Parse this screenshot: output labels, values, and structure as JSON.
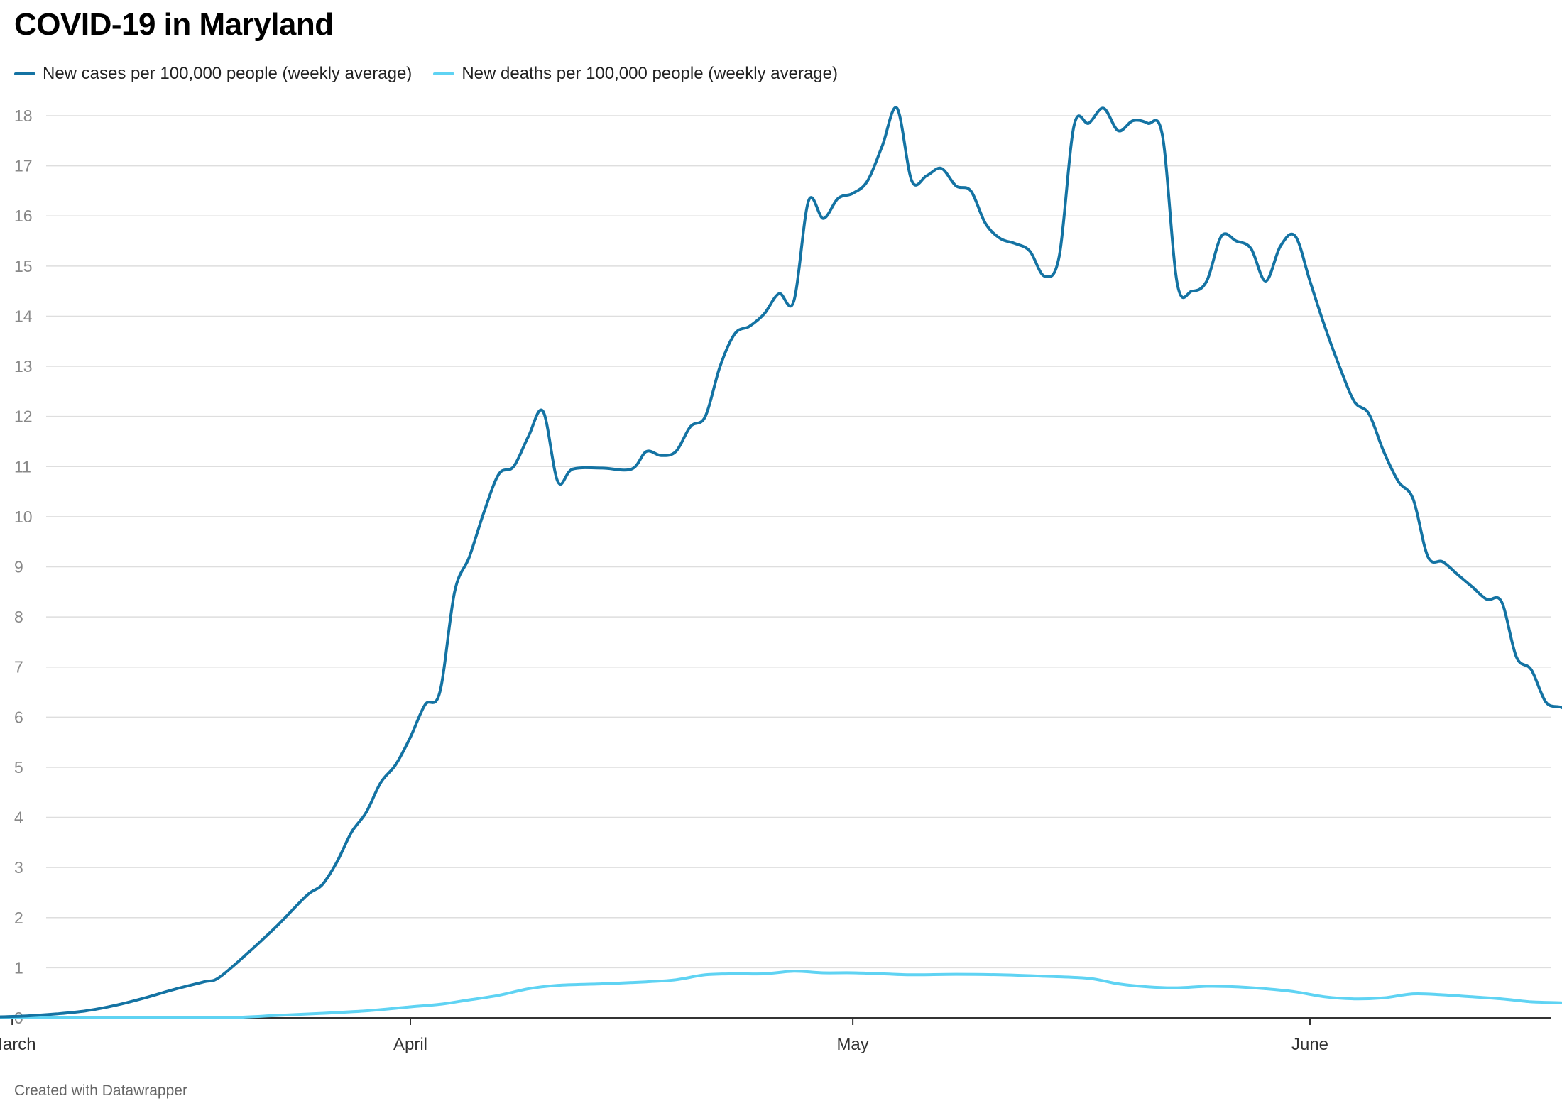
{
  "title": "COVID-19 in Maryland",
  "footer": "Created with Datawrapper",
  "legend": [
    {
      "label": "New cases per 100,000 people (weekly average)",
      "color": "#1473a3"
    },
    {
      "label": "New deaths per 100,000 people (weekly average)",
      "color": "#5fd3f3"
    }
  ],
  "chart_data": {
    "type": "line",
    "x_axis": {
      "type": "date",
      "range": [
        "2020-03-04",
        "2020-06-17"
      ],
      "ticks": [
        {
          "date": "2020-03-05",
          "label": "March"
        },
        {
          "date": "2020-04-01",
          "label": "April"
        },
        {
          "date": "2020-05-01",
          "label": "May"
        },
        {
          "date": "2020-06-01",
          "label": "June"
        }
      ]
    },
    "y_axis": {
      "range": [
        0,
        18
      ],
      "ticks": [
        0,
        1,
        2,
        3,
        4,
        5,
        6,
        7,
        8,
        9,
        10,
        11,
        12,
        13,
        14,
        15,
        16,
        17,
        18
      ]
    },
    "grid": true,
    "legend_position": "top-left",
    "series": [
      {
        "name": "New cases per 100,000 people (weekly average)",
        "color": "#1473a3",
        "points": [
          [
            "2020-03-04",
            0.02
          ],
          [
            "2020-03-06",
            0.04
          ],
          [
            "2020-03-08",
            0.08
          ],
          [
            "2020-03-10",
            0.14
          ],
          [
            "2020-03-12",
            0.25
          ],
          [
            "2020-03-14",
            0.4
          ],
          [
            "2020-03-16",
            0.57
          ],
          [
            "2020-03-18",
            0.72
          ],
          [
            "2020-03-19",
            0.8
          ],
          [
            "2020-03-21",
            1.3
          ],
          [
            "2020-03-23",
            1.85
          ],
          [
            "2020-03-25",
            2.45
          ],
          [
            "2020-03-26",
            2.65
          ],
          [
            "2020-03-27",
            3.1
          ],
          [
            "2020-03-28",
            3.7
          ],
          [
            "2020-03-29",
            4.1
          ],
          [
            "2020-03-30",
            4.7
          ],
          [
            "2020-03-31",
            5.05
          ],
          [
            "2020-04-01",
            5.6
          ],
          [
            "2020-04-02",
            6.25
          ],
          [
            "2020-04-03",
            6.5
          ],
          [
            "2020-04-04",
            8.5
          ],
          [
            "2020-04-05",
            9.2
          ],
          [
            "2020-04-06",
            10.1
          ],
          [
            "2020-04-07",
            10.85
          ],
          [
            "2020-04-08",
            11.0
          ],
          [
            "2020-04-09",
            11.6
          ],
          [
            "2020-04-10",
            12.1
          ],
          [
            "2020-04-11",
            10.7
          ],
          [
            "2020-04-12",
            10.95
          ],
          [
            "2020-04-14",
            10.97
          ],
          [
            "2020-04-16",
            10.95
          ],
          [
            "2020-04-17",
            11.3
          ],
          [
            "2020-04-18",
            11.22
          ],
          [
            "2020-04-19",
            11.3
          ],
          [
            "2020-04-20",
            11.8
          ],
          [
            "2020-04-21",
            12.0
          ],
          [
            "2020-04-22",
            13.0
          ],
          [
            "2020-04-23",
            13.65
          ],
          [
            "2020-04-24",
            13.8
          ],
          [
            "2020-04-25",
            14.05
          ],
          [
            "2020-04-26",
            14.45
          ],
          [
            "2020-04-27",
            14.3
          ],
          [
            "2020-04-28",
            16.3
          ],
          [
            "2020-04-29",
            15.95
          ],
          [
            "2020-04-30",
            16.35
          ],
          [
            "2020-05-01",
            16.45
          ],
          [
            "2020-05-02",
            16.7
          ],
          [
            "2020-05-03",
            17.4
          ],
          [
            "2020-05-04",
            18.15
          ],
          [
            "2020-05-05",
            16.7
          ],
          [
            "2020-05-06",
            16.8
          ],
          [
            "2020-05-07",
            16.95
          ],
          [
            "2020-05-08",
            16.6
          ],
          [
            "2020-05-09",
            16.5
          ],
          [
            "2020-05-10",
            15.85
          ],
          [
            "2020-05-11",
            15.55
          ],
          [
            "2020-05-12",
            15.45
          ],
          [
            "2020-05-13",
            15.3
          ],
          [
            "2020-05-14",
            14.8
          ],
          [
            "2020-05-15",
            15.2
          ],
          [
            "2020-05-16",
            17.8
          ],
          [
            "2020-05-17",
            17.85
          ],
          [
            "2020-05-18",
            18.15
          ],
          [
            "2020-05-19",
            17.7
          ],
          [
            "2020-05-20",
            17.9
          ],
          [
            "2020-05-21",
            17.85
          ],
          [
            "2020-05-22",
            17.6
          ],
          [
            "2020-05-23",
            14.65
          ],
          [
            "2020-05-24",
            14.5
          ],
          [
            "2020-05-25",
            14.7
          ],
          [
            "2020-05-26",
            15.6
          ],
          [
            "2020-05-27",
            15.5
          ],
          [
            "2020-05-28",
            15.35
          ],
          [
            "2020-05-29",
            14.7
          ],
          [
            "2020-05-30",
            15.4
          ],
          [
            "2020-05-31",
            15.6
          ],
          [
            "2020-06-01",
            14.7
          ],
          [
            "2020-06-02",
            13.8
          ],
          [
            "2020-06-03",
            13.0
          ],
          [
            "2020-06-04",
            12.3
          ],
          [
            "2020-06-05",
            12.05
          ],
          [
            "2020-06-06",
            11.3
          ],
          [
            "2020-06-07",
            10.7
          ],
          [
            "2020-06-08",
            10.35
          ],
          [
            "2020-06-09",
            9.2
          ],
          [
            "2020-06-10",
            9.1
          ],
          [
            "2020-06-11",
            8.85
          ],
          [
            "2020-06-12",
            8.6
          ],
          [
            "2020-06-13",
            8.35
          ],
          [
            "2020-06-14",
            8.3
          ],
          [
            "2020-06-15",
            7.2
          ],
          [
            "2020-06-16",
            6.95
          ],
          [
            "2020-06-17",
            6.3
          ],
          [
            "2020-06-18",
            6.2
          ],
          [
            "2020-06-19",
            6.1
          ],
          [
            "2020-06-20",
            6.2
          ]
        ]
      },
      {
        "name": "New deaths per 100,000 people (weekly average)",
        "color": "#5fd3f3",
        "points": [
          [
            "2020-03-04",
            0.0
          ],
          [
            "2020-03-10",
            0.0
          ],
          [
            "2020-03-16",
            0.01
          ],
          [
            "2020-03-20",
            0.01
          ],
          [
            "2020-03-23",
            0.05
          ],
          [
            "2020-03-26",
            0.09
          ],
          [
            "2020-03-29",
            0.14
          ],
          [
            "2020-04-01",
            0.22
          ],
          [
            "2020-04-03",
            0.27
          ],
          [
            "2020-04-05",
            0.36
          ],
          [
            "2020-04-07",
            0.45
          ],
          [
            "2020-04-09",
            0.58
          ],
          [
            "2020-04-11",
            0.65
          ],
          [
            "2020-04-14",
            0.68
          ],
          [
            "2020-04-17",
            0.72
          ],
          [
            "2020-04-19",
            0.76
          ],
          [
            "2020-04-21",
            0.86
          ],
          [
            "2020-04-23",
            0.88
          ],
          [
            "2020-04-25",
            0.88
          ],
          [
            "2020-04-27",
            0.93
          ],
          [
            "2020-04-29",
            0.9
          ],
          [
            "2020-05-01",
            0.9
          ],
          [
            "2020-05-03",
            0.88
          ],
          [
            "2020-05-05",
            0.86
          ],
          [
            "2020-05-08",
            0.87
          ],
          [
            "2020-05-11",
            0.86
          ],
          [
            "2020-05-14",
            0.83
          ],
          [
            "2020-05-17",
            0.79
          ],
          [
            "2020-05-19",
            0.68
          ],
          [
            "2020-05-21",
            0.62
          ],
          [
            "2020-05-23",
            0.6
          ],
          [
            "2020-05-25",
            0.63
          ],
          [
            "2020-05-27",
            0.62
          ],
          [
            "2020-05-29",
            0.58
          ],
          [
            "2020-05-31",
            0.52
          ],
          [
            "2020-06-02",
            0.42
          ],
          [
            "2020-06-04",
            0.38
          ],
          [
            "2020-06-06",
            0.4
          ],
          [
            "2020-06-08",
            0.48
          ],
          [
            "2020-06-10",
            0.46
          ],
          [
            "2020-06-12",
            0.42
          ],
          [
            "2020-06-14",
            0.38
          ],
          [
            "2020-06-16",
            0.32
          ],
          [
            "2020-06-18",
            0.3
          ],
          [
            "2020-06-20",
            0.27
          ]
        ]
      }
    ]
  }
}
